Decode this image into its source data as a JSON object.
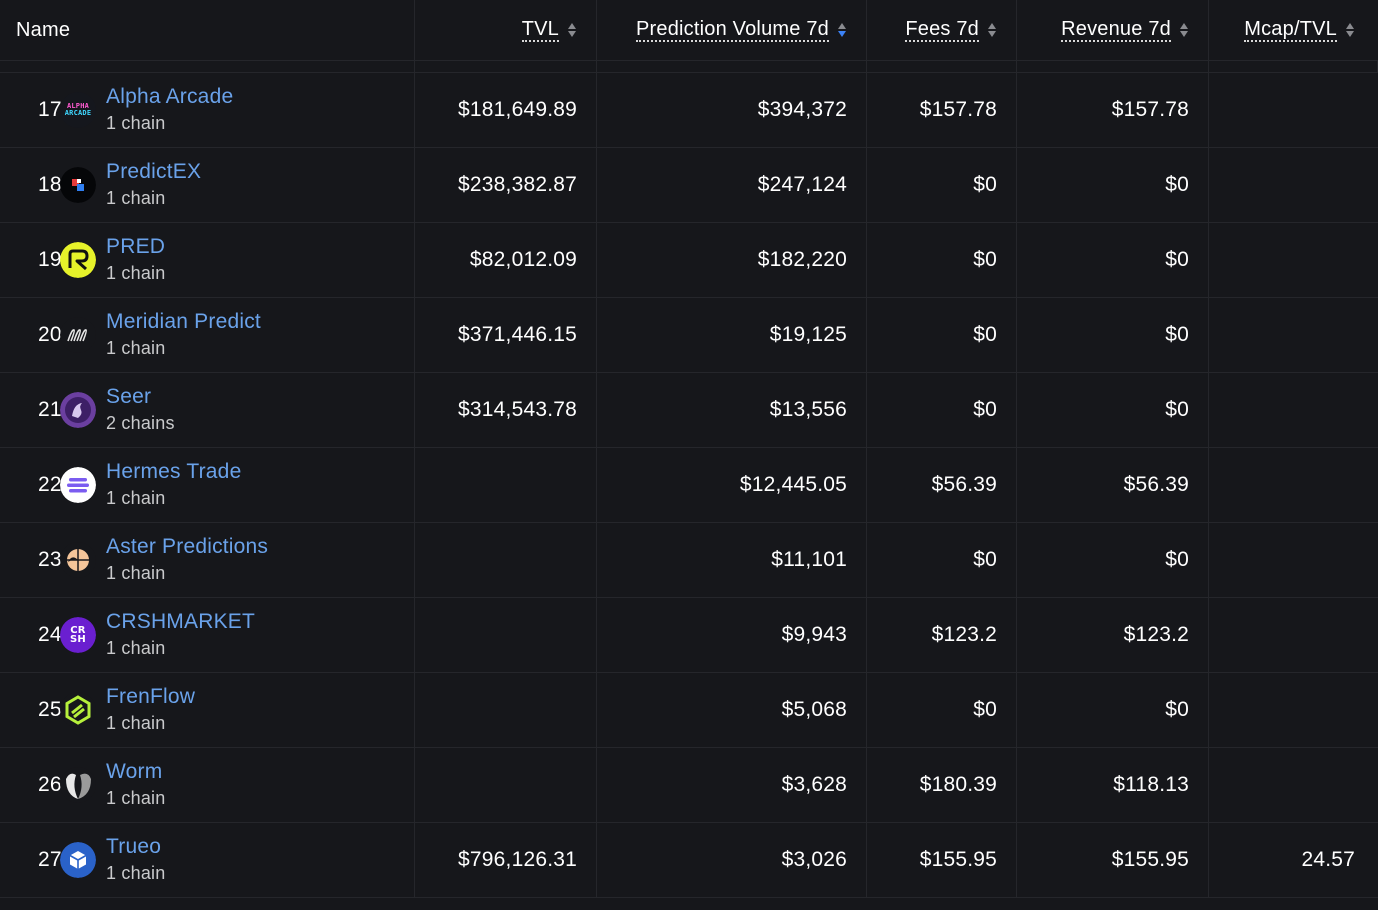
{
  "header": {
    "name": "Name",
    "tvl": "TVL",
    "prediction_volume": "Prediction Volume 7d",
    "fees": "Fees 7d",
    "revenue": "Revenue 7d",
    "mcap_tvl": "Mcap/TVL"
  },
  "rows": [
    {
      "rank": "17",
      "name": "Alpha Arcade",
      "chains": "1 chain",
      "tvl": "$181,649.89",
      "volume": "$394,372",
      "fees": "$157.78",
      "revenue": "$157.78",
      "mcap_tvl": "",
      "logo_text": "ALPHA ARCADE",
      "icon": "alpha-arcade-icon"
    },
    {
      "rank": "18",
      "name": "PredictEX",
      "chains": "1 chain",
      "tvl": "$238,382.87",
      "volume": "$247,124",
      "fees": "$0",
      "revenue": "$0",
      "mcap_tvl": "",
      "icon": "predictex-icon"
    },
    {
      "rank": "19",
      "name": "PRED",
      "chains": "1 chain",
      "tvl": "$82,012.09",
      "volume": "$182,220",
      "fees": "$0",
      "revenue": "$0",
      "mcap_tvl": "",
      "icon": "pred-icon"
    },
    {
      "rank": "20",
      "name": "Meridian Predict",
      "chains": "1 chain",
      "tvl": "$371,446.15",
      "volume": "$19,125",
      "fees": "$0",
      "revenue": "$0",
      "mcap_tvl": "",
      "icon": "meridian-icon"
    },
    {
      "rank": "21",
      "name": "Seer",
      "chains": "2 chains",
      "tvl": "$314,543.78",
      "volume": "$13,556",
      "fees": "$0",
      "revenue": "$0",
      "mcap_tvl": "",
      "icon": "seer-icon"
    },
    {
      "rank": "22",
      "name": "Hermes Trade",
      "chains": "1 chain",
      "tvl": "",
      "volume": "$12,445.05",
      "fees": "$56.39",
      "revenue": "$56.39",
      "mcap_tvl": "",
      "icon": "hermes-icon"
    },
    {
      "rank": "23",
      "name": "Aster Predictions",
      "chains": "1 chain",
      "tvl": "",
      "volume": "$11,101",
      "fees": "$0",
      "revenue": "$0",
      "mcap_tvl": "",
      "icon": "aster-icon"
    },
    {
      "rank": "24",
      "name": "CRSHMARKET",
      "chains": "1 chain",
      "tvl": "",
      "volume": "$9,943",
      "fees": "$123.2",
      "revenue": "$123.2",
      "mcap_tvl": "",
      "logo_text": "CR SH",
      "icon": "crshmarket-icon"
    },
    {
      "rank": "25",
      "name": "FrenFlow",
      "chains": "1 chain",
      "tvl": "",
      "volume": "$5,068",
      "fees": "$0",
      "revenue": "$0",
      "mcap_tvl": "",
      "icon": "frenflow-icon"
    },
    {
      "rank": "26",
      "name": "Worm",
      "chains": "1 chain",
      "tvl": "",
      "volume": "$3,628",
      "fees": "$180.39",
      "revenue": "$118.13",
      "mcap_tvl": "",
      "icon": "worm-icon"
    },
    {
      "rank": "27",
      "name": "Trueo",
      "chains": "1 chain",
      "tvl": "$796,126.31",
      "volume": "$3,026",
      "fees": "$155.95",
      "revenue": "$155.95",
      "mcap_tvl": "24.57",
      "icon": "trueo-icon"
    }
  ],
  "colors": {
    "background": "#16171b",
    "link": "#6aa2ea",
    "sort_active": "#3b82f6"
  }
}
